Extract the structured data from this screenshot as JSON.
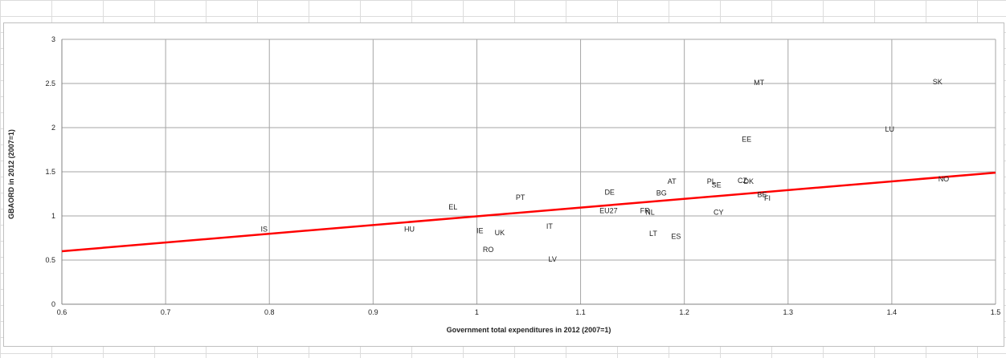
{
  "chart_data": {
    "type": "scatter",
    "title": "",
    "xlabel": "Government total expenditures in 2012 (2007=1)",
    "ylabel": "GBAORD in 2012 (2007=1)",
    "xlim": [
      0.6,
      1.5
    ],
    "ylim": [
      0,
      3
    ],
    "xticks": [
      "0.6",
      "0.7",
      "0.8",
      "0.9",
      "1",
      "1.1",
      "1.2",
      "1.3",
      "1.4",
      "1.5"
    ],
    "yticks": [
      "0",
      "0.5",
      "1",
      "1.5",
      "2",
      "2.5",
      "3"
    ],
    "grid": true,
    "legend": "none",
    "trend_line": {
      "x": [
        0.6,
        1.5
      ],
      "y": [
        0.6,
        1.49
      ],
      "color": "#ff0000"
    },
    "points": [
      {
        "label": "IS",
        "x": 0.795,
        "y": 0.85
      },
      {
        "label": "HU",
        "x": 0.935,
        "y": 0.85
      },
      {
        "label": "EL",
        "x": 0.977,
        "y": 1.1
      },
      {
        "label": "IE",
        "x": 1.003,
        "y": 0.83
      },
      {
        "label": "UK",
        "x": 1.022,
        "y": 0.81
      },
      {
        "label": "RO",
        "x": 1.011,
        "y": 0.62
      },
      {
        "label": "PT",
        "x": 1.042,
        "y": 1.21
      },
      {
        "label": "IT",
        "x": 1.07,
        "y": 0.88
      },
      {
        "label": "LV",
        "x": 1.073,
        "y": 0.51
      },
      {
        "label": "DE",
        "x": 1.128,
        "y": 1.27
      },
      {
        "label": "EU27",
        "x": 1.127,
        "y": 1.06
      },
      {
        "label": "FR",
        "x": 1.162,
        "y": 1.06
      },
      {
        "label": "NL",
        "x": 1.167,
        "y": 1.04
      },
      {
        "label": "BG",
        "x": 1.178,
        "y": 1.26
      },
      {
        "label": "AT",
        "x": 1.188,
        "y": 1.39
      },
      {
        "label": "LT",
        "x": 1.17,
        "y": 0.8
      },
      {
        "label": "ES",
        "x": 1.192,
        "y": 0.77
      },
      {
        "label": "PL",
        "x": 1.226,
        "y": 1.39
      },
      {
        "label": "SE",
        "x": 1.231,
        "y": 1.35
      },
      {
        "label": "CY",
        "x": 1.233,
        "y": 1.04
      },
      {
        "label": "CZ",
        "x": 1.256,
        "y": 1.4
      },
      {
        "label": "DK",
        "x": 1.262,
        "y": 1.39
      },
      {
        "label": "EE",
        "x": 1.26,
        "y": 1.87
      },
      {
        "label": "MT",
        "x": 1.272,
        "y": 2.51
      },
      {
        "label": "BE",
        "x": 1.275,
        "y": 1.24
      },
      {
        "label": "FI",
        "x": 1.28,
        "y": 1.2
      },
      {
        "label": "LU",
        "x": 1.398,
        "y": 1.98
      },
      {
        "label": "SK",
        "x": 1.444,
        "y": 2.52
      },
      {
        "label": "NO",
        "x": 1.45,
        "y": 1.42
      }
    ]
  }
}
